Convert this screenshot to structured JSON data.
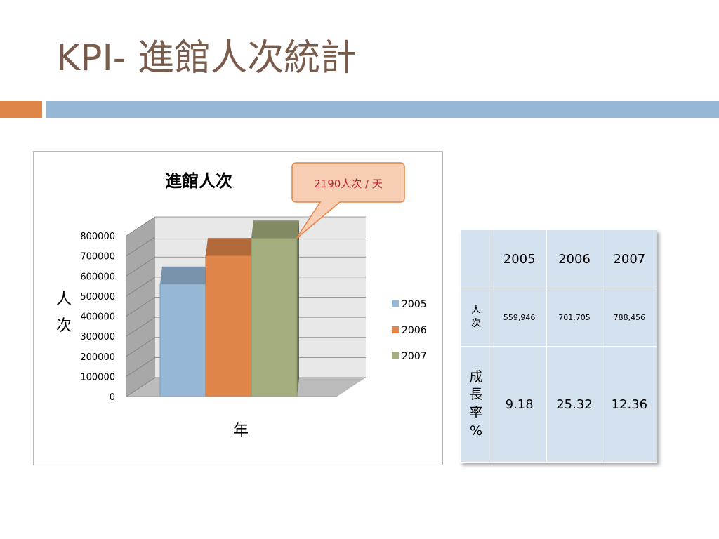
{
  "slide": {
    "title": "KPI- 進館人次統計"
  },
  "chart_data": {
    "type": "bar",
    "title": "進館人次",
    "xlabel": "年",
    "ylabel": "人次",
    "categories": [
      "2005",
      "2006",
      "2007"
    ],
    "values": [
      559946,
      701705,
      788456
    ],
    "ylim": [
      0,
      800000
    ],
    "yticks": [
      "0",
      "100000",
      "200000",
      "300000",
      "400000",
      "500000",
      "600000",
      "700000",
      "800000"
    ],
    "legend": [
      {
        "label": "2005",
        "color": "#96b8d6"
      },
      {
        "label": "2006",
        "color": "#e0854a"
      },
      {
        "label": "2007",
        "color": "#a3ad7d"
      }
    ],
    "legend_position": "right",
    "grid": true,
    "annotation": "2190人次 / 天"
  },
  "table": {
    "years": [
      "2005",
      "2006",
      "2007"
    ],
    "row1_label": [
      "人",
      "次"
    ],
    "row1_values": [
      "559,946",
      "701,705",
      "788,456"
    ],
    "row2_label": [
      "成",
      "長",
      "率",
      "%"
    ],
    "row2_values": [
      "9.18",
      "25.32",
      "12.36"
    ]
  }
}
